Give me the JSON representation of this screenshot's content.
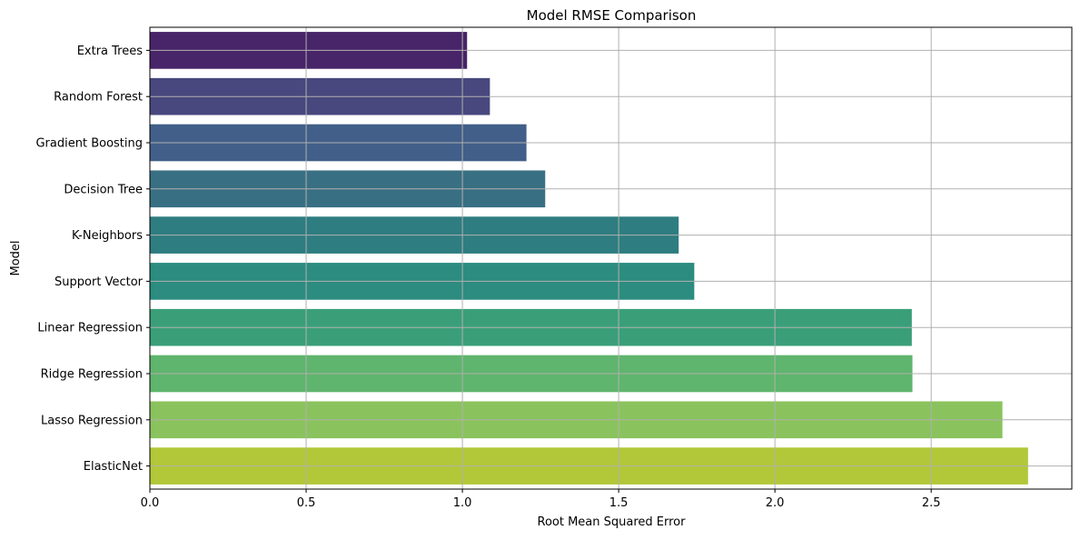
{
  "chart_data": {
    "type": "bar",
    "orientation": "horizontal",
    "title": "Model RMSE Comparison",
    "xlabel": "Root Mean Squared Error",
    "ylabel": "Model",
    "xlim": [
      0,
      2.95
    ],
    "xticks": [
      0.0,
      0.5,
      1.0,
      1.5,
      2.0,
      2.5
    ],
    "xtick_labels": [
      "0.0",
      "0.5",
      "1.0",
      "1.5",
      "2.0",
      "2.5"
    ],
    "grid": true,
    "categories": [
      "Extra Trees",
      "Random Forest",
      "Gradient Boosting",
      "Decision Tree",
      "K-Neighbors",
      "Support Vector",
      "Linear Regression",
      "Ridge Regression",
      "Lasso Regression",
      "ElasticNet"
    ],
    "values": [
      1.015,
      1.088,
      1.205,
      1.265,
      1.692,
      1.742,
      2.438,
      2.44,
      2.728,
      2.81
    ],
    "colors": [
      "#482468",
      "#48487e",
      "#415f88",
      "#396f83",
      "#2e7d80",
      "#2c8c7f",
      "#3a9f79",
      "#5fb56d",
      "#8ac35d",
      "#b2c838"
    ],
    "gridline_color": "#b0b0b0"
  }
}
